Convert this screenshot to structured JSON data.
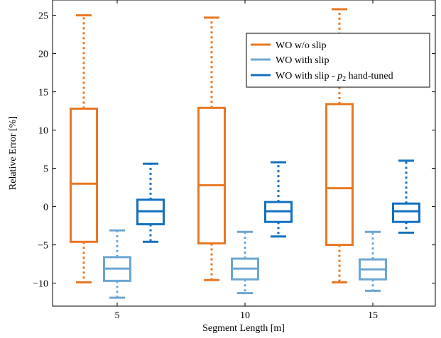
{
  "chart_data": {
    "type": "box",
    "title": "",
    "xlabel": "Segment Length [m]",
    "ylabel": "Relative Error [%]",
    "ylim": [
      -13,
      27
    ],
    "categories": [
      "5",
      "10",
      "15"
    ],
    "y_ticks": [
      "25",
      "20",
      "15",
      "10",
      "5",
      "0",
      "−5",
      "−10"
    ],
    "y_tick_values": [
      25,
      20,
      15,
      10,
      5,
      0,
      -5,
      -10
    ],
    "legend_position": "top-right",
    "series": [
      {
        "name": "WO w/o slip",
        "color": "#E87722",
        "boxes": [
          {
            "whisker_low": -9.9,
            "q1": -4.6,
            "median": 3.0,
            "q3": 12.8,
            "whisker_high": 25.0
          },
          {
            "whisker_low": -9.6,
            "q1": -4.8,
            "median": 2.8,
            "q3": 12.9,
            "whisker_high": 24.7
          },
          {
            "whisker_low": -9.9,
            "q1": -5.0,
            "median": 2.4,
            "q3": 13.4,
            "whisker_high": 25.8
          }
        ]
      },
      {
        "name": "WO with slip",
        "color": "#6CA6D3",
        "boxes": [
          {
            "whisker_low": -11.9,
            "q1": -9.7,
            "median": -8.1,
            "q3": -6.6,
            "whisker_high": -3.1
          },
          {
            "whisker_low": -11.3,
            "q1": -9.5,
            "median": -8.1,
            "q3": -6.8,
            "whisker_high": -3.3
          },
          {
            "whisker_low": -11.0,
            "q1": -9.5,
            "median": -8.2,
            "q3": -6.9,
            "whisker_high": -3.3
          }
        ]
      },
      {
        "name": "WO with slip - p2 hand-tuned",
        "color": "#1170C1",
        "boxes": [
          {
            "whisker_low": -4.6,
            "q1": -2.3,
            "median": -0.6,
            "q3": 0.9,
            "whisker_high": 5.6
          },
          {
            "whisker_low": -3.9,
            "q1": -2.0,
            "median": -0.6,
            "q3": 0.6,
            "whisker_high": 5.8
          },
          {
            "whisker_low": -3.4,
            "q1": -2.0,
            "median": -0.6,
            "q3": 0.4,
            "whisker_high": 6.0
          }
        ]
      }
    ],
    "legend": [
      {
        "label": "WO w/o slip"
      },
      {
        "label": "WO with slip"
      },
      {
        "label_prefix": "WO with slip - ",
        "label_var": "p",
        "label_sub": "2",
        "label_suffix": " hand-tuned"
      }
    ]
  }
}
